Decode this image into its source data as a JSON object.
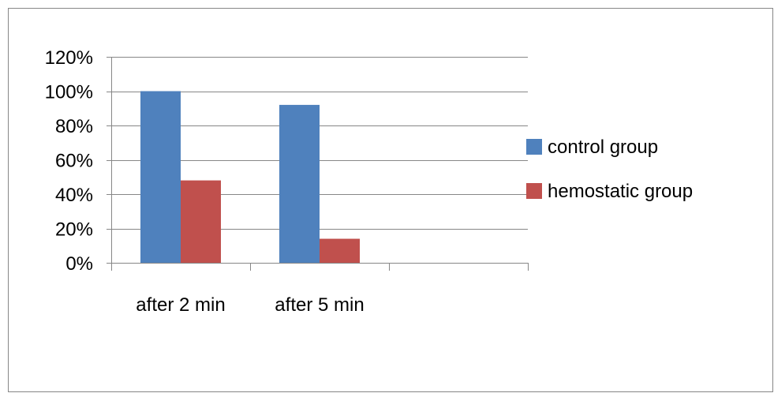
{
  "chart_data": {
    "type": "bar",
    "title": "",
    "xlabel": "",
    "ylabel": "",
    "categories": [
      "after 2 min",
      "after 5 min",
      ""
    ],
    "series": [
      {
        "name": "control group",
        "values": [
          1.0,
          0.92,
          null
        ],
        "color": "#4F81BD"
      },
      {
        "name": "hemostatic group",
        "values": [
          0.48,
          0.14,
          null
        ],
        "color": "#C0504D"
      }
    ],
    "ylim": [
      0,
      1.2
    ],
    "yticks": [
      0,
      0.2,
      0.4,
      0.6,
      0.8,
      1.0,
      1.2
    ],
    "ytick_labels": [
      "0%",
      "20%",
      "40%",
      "60%",
      "80%",
      "100%",
      "120%"
    ],
    "grid": true,
    "legend_position": "right"
  }
}
